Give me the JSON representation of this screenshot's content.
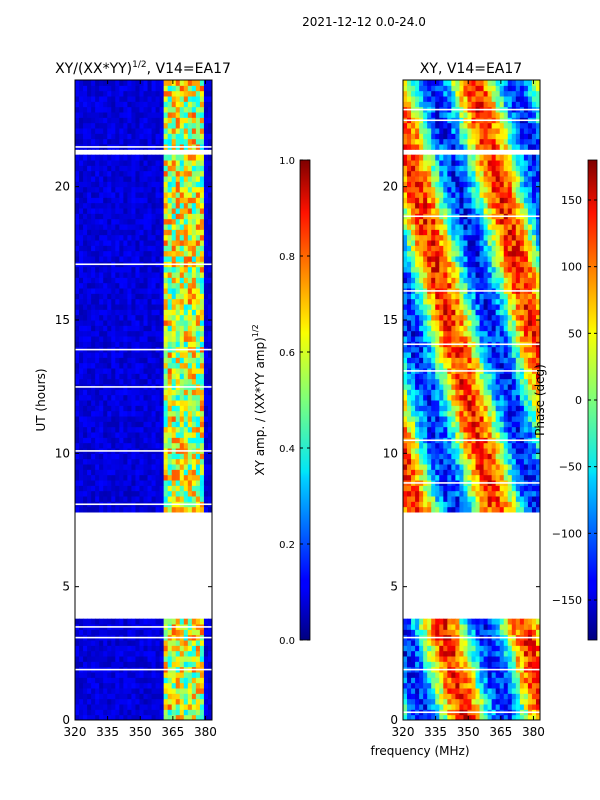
{
  "figure": {
    "suptitle": "2021-12-12 0.0-24.0",
    "shared_xlabel": "frequency (MHz)"
  },
  "chart_data": [
    {
      "type": "heatmap",
      "title_base": "XY/(XX*YY)",
      "title_exp": "1/2",
      "title_suffix": ", V14=EA17",
      "ylabel": "UT (hours)",
      "xlim": [
        320,
        383
      ],
      "ylim": [
        0,
        24
      ],
      "xticks": [
        "320",
        "335",
        "350",
        "365",
        "380"
      ],
      "xtick_values": [
        320,
        335,
        350,
        365,
        380
      ],
      "yticks": [
        "0",
        "5",
        "10",
        "15",
        "20"
      ],
      "ytick_values": [
        0,
        5,
        10,
        15,
        20
      ],
      "data_gaps_hours": [
        [
          3.8,
          7.9
        ],
        [
          21.3,
          21.5
        ]
      ],
      "active_band_mhz": [
        360,
        380
      ],
      "colorbar": {
        "label_base": "XY amp. / (XX*YY amp)",
        "label_exp": "1/2",
        "range": [
          0.0,
          1.0
        ],
        "ticks": [
          "0.0",
          "0.2",
          "0.4",
          "0.6",
          "0.8",
          "1.0"
        ],
        "tick_values": [
          0.0,
          0.2,
          0.4,
          0.6,
          0.8,
          1.0
        ]
      }
    },
    {
      "type": "heatmap",
      "title": "XY, V14=EA17",
      "xlim": [
        320,
        383
      ],
      "ylim": [
        0,
        24
      ],
      "xticks": [
        "320",
        "335",
        "350",
        "365",
        "380"
      ],
      "xtick_values": [
        320,
        335,
        350,
        365,
        380
      ],
      "yticks": [
        "0",
        "5",
        "10",
        "15",
        "20"
      ],
      "ytick_values": [
        0,
        5,
        10,
        15,
        20
      ],
      "data_gaps_hours": [
        [
          3.8,
          7.9
        ],
        [
          21.3,
          21.5
        ]
      ],
      "colorbar": {
        "label": "Phase (deg)",
        "range": [
          -180,
          180
        ],
        "ticks": [
          "−150",
          "−100",
          "−50",
          "0",
          "50",
          "100",
          "150"
        ],
        "tick_values": [
          -150,
          -100,
          -50,
          0,
          50,
          100,
          150
        ]
      }
    }
  ]
}
